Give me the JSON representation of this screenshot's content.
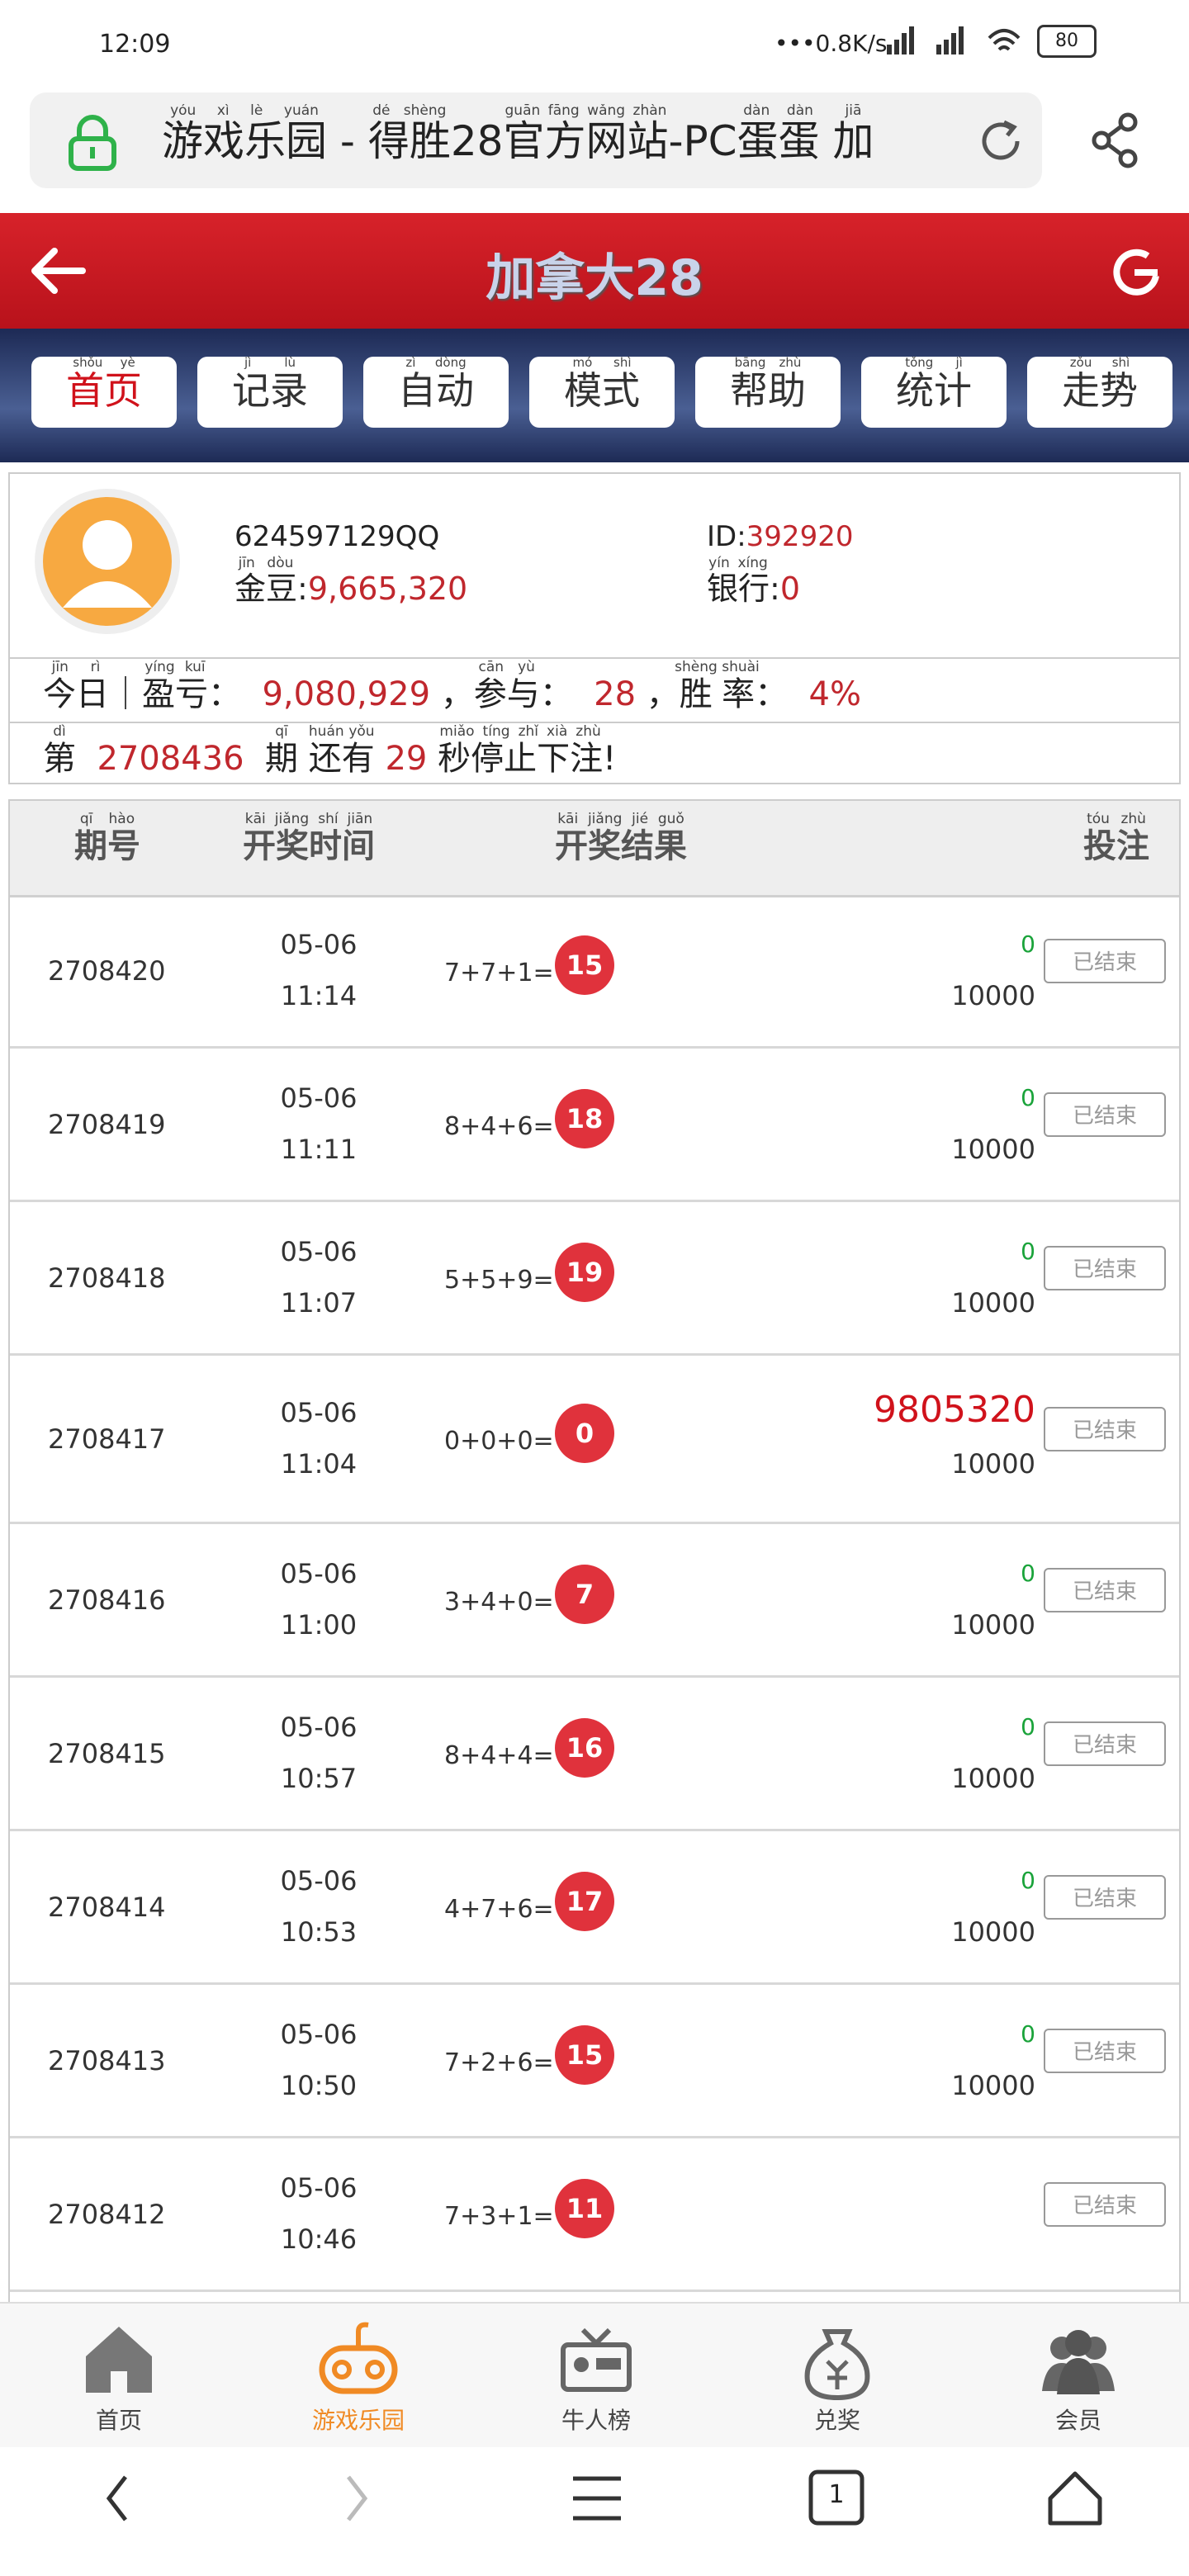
{
  "status_bar": {
    "time": "12:09",
    "network": "•••0.8K/s",
    "battery": "80"
  },
  "address": [
    {
      "text": "游戏乐园",
      "ruby": "yóu xì lè yuán"
    },
    {
      "text": " - "
    },
    {
      "text": "得胜",
      "ruby": "dé shèng"
    },
    {
      "text": "28"
    },
    {
      "text": "官方网站",
      "ruby": "guān fāng wǎng zhàn"
    },
    {
      "text": "-PC"
    },
    {
      "text": "蛋蛋",
      "ruby": "dàn dàn"
    },
    {
      "text": " "
    },
    {
      "text": "加",
      "ruby": "jiā"
    }
  ],
  "header": {
    "title": "加拿大28"
  },
  "tabs": [
    {
      "text": "首页",
      "ruby": "shǒu yè"
    },
    {
      "text": "记录",
      "ruby": "jì lù"
    },
    {
      "text": "自动",
      "ruby": "zì dòng"
    },
    {
      "text": "模式",
      "ruby": "mó shì"
    },
    {
      "text": "帮助",
      "ruby": "bāng zhù"
    },
    {
      "text": "统计",
      "ruby": "tǒng jì"
    },
    {
      "text": "走势",
      "ruby": "zǒu shì"
    }
  ],
  "user": {
    "account": "624597129QQ",
    "id_label": "ID:",
    "id": "392920",
    "beans": [
      {
        "text": "金豆",
        "ruby": "jīn dòu"
      },
      {
        "text": ":"
      },
      {
        "text": "9,665,320",
        "color": "#c0272d"
      }
    ],
    "bank": [
      {
        "text": "银行",
        "ruby": "yín xíng"
      },
      {
        "text": ":"
      },
      {
        "text": "0",
        "color": "#c0272d"
      }
    ]
  },
  "stats": [
    {
      "text": "今日",
      "ruby": "jīn rì"
    },
    {
      "text": "｜"
    },
    {
      "text": "盈亏",
      "ruby": "yíng kuī"
    },
    {
      "text": "：  "
    },
    {
      "text": "9,080,929",
      "color": "#c0272d"
    },
    {
      "text": " ，"
    },
    {
      "text": "参与",
      "ruby": "cān yù"
    },
    {
      "text": "：  "
    },
    {
      "text": "28",
      "color": "#c0272d"
    },
    {
      "text": " ，"
    },
    {
      "text": "胜率",
      "ruby": "shèng shuài"
    },
    {
      "text": "：  "
    },
    {
      "text": "4%",
      "color": "#c0272d"
    }
  ],
  "countdown": [
    {
      "text": "第",
      "ruby": "dì"
    },
    {
      "text": "  "
    },
    {
      "text": "2708436",
      "color": "#c0272d"
    },
    {
      "text": "  "
    },
    {
      "text": "期",
      "ruby": "qī"
    },
    {
      "text": " "
    },
    {
      "text": "还有",
      "ruby": "huán yǒu"
    },
    {
      "text": " "
    },
    {
      "text": "29",
      "color": "#c0272d"
    },
    {
      "text": " "
    },
    {
      "text": "秒停止下注",
      "ruby": "miǎo tíng zhǐ xià zhù"
    },
    {
      "text": "!"
    }
  ],
  "table": {
    "columns": [
      {
        "text": "期号",
        "ruby": "qī hào"
      },
      {
        "text": "开奖时间",
        "ruby": "kāi jiǎng shí jiān"
      },
      {
        "text": "开奖结果",
        "ruby": "kāi jiǎng jié guǒ"
      },
      {
        "text": "投注",
        "ruby": "tóu zhù"
      }
    ],
    "rows": [
      {
        "period": "2708420",
        "date": "05-06",
        "time": "11:14",
        "formula": "7+7+1=",
        "result": "15",
        "win": "0",
        "bet": "10000",
        "status": "已结束"
      },
      {
        "period": "2708419",
        "date": "05-06",
        "time": "11:11",
        "formula": "8+4+6=",
        "result": "18",
        "win": "0",
        "bet": "10000",
        "status": "已结束"
      },
      {
        "period": "2708418",
        "date": "05-06",
        "time": "11:07",
        "formula": "5+5+9=",
        "result": "19",
        "win": "0",
        "bet": "10000",
        "status": "已结束"
      },
      {
        "period": "2708417",
        "date": "05-06",
        "time": "11:04",
        "formula": "0+0+0=",
        "result": "0",
        "win": "9805320",
        "bet": "10000",
        "status": "已结束"
      },
      {
        "period": "2708416",
        "date": "05-06",
        "time": "11:00",
        "formula": "3+4+0=",
        "result": "7",
        "win": "0",
        "bet": "10000",
        "status": "已结束"
      },
      {
        "period": "2708415",
        "date": "05-06",
        "time": "10:57",
        "formula": "8+4+4=",
        "result": "16",
        "win": "0",
        "bet": "10000",
        "status": "已结束"
      },
      {
        "period": "2708414",
        "date": "05-06",
        "time": "10:53",
        "formula": "4+7+6=",
        "result": "17",
        "win": "0",
        "bet": "10000",
        "status": "已结束"
      },
      {
        "period": "2708413",
        "date": "05-06",
        "time": "10:50",
        "formula": "7+2+6=",
        "result": "15",
        "win": "0",
        "bet": "10000",
        "status": "已结束"
      },
      {
        "period": "2708412",
        "date": "05-06",
        "time": "10:46",
        "formula": "7+3+1=",
        "result": "11",
        "status": "已结束"
      }
    ]
  },
  "bottom_nav": [
    {
      "label": "首页"
    },
    {
      "label": "游戏乐园",
      "active": true
    },
    {
      "label": "牛人榜"
    },
    {
      "label": "兑奖"
    },
    {
      "label": "会员"
    }
  ],
  "system_nav": {
    "tab_count": "1"
  }
}
